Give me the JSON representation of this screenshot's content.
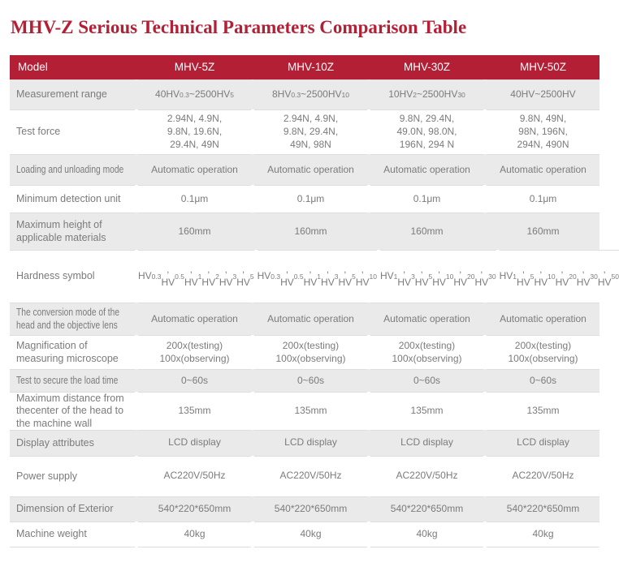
{
  "title": "MHV-Z Serious Technical Parameters Comparison Table",
  "colors": {
    "accent": "#b31f34",
    "row_alt": "#eaeaea",
    "line": "#dedede",
    "text": "#7b7b7b"
  },
  "table": {
    "header": [
      "Model",
      "MHV-5Z",
      "MHV-10Z",
      "MHV-30Z",
      "MHV-50Z"
    ],
    "rows": [
      {
        "label": "Measurement range",
        "condensed": false,
        "values": [
          "40HV_{0.3}~2500HV_{5}",
          "8HV_{0.3}~2500HV_{10}",
          "10HV_{2}~2500HV_{30}",
          "40HV~2500HV"
        ]
      },
      {
        "label": "Test force",
        "condensed": false,
        "values": [
          "2.94N, 4.9N,\n9.8N, 19.6N,\n29.4N, 49N",
          "2.94N, 4.9N,\n9.8N, 29.4N,\n49N, 98N",
          "9.8N, 29.4N,\n49.0N, 98.0N,\n196N, 294 N",
          "9.8N, 49N,\n98N, 196N,\n294N, 490N"
        ]
      },
      {
        "label": "Loading and unloading mode",
        "condensed": true,
        "values": [
          "Automatic operation",
          "Automatic operation",
          "Automatic operation",
          "Automatic operation"
        ]
      },
      {
        "label": "Minimum detection unit",
        "condensed": false,
        "values": [
          "0.1μm",
          "0.1μm",
          "0.1μm",
          "0.1μm"
        ]
      },
      {
        "label": "Maximum height of\napplicable materials",
        "condensed": false,
        "values": [
          "160mm",
          "160mm",
          "160mm",
          "160mm"
        ]
      },
      {
        "label": "Hardness symbol",
        "condensed": false,
        "values": [
          "HV_{0.3}, HV_{0.5},\nHV_{1}, HV_{2},\nHV_{3}, HV_{5}",
          "HV_{0.3}, HV_{0.5},\nHV_{1}, HV_{3},\nHV_{5}, HV_{10}",
          "HV_{1}, HV_{3},\nHV_{5}, HV_{10},\nHV_{20}, HV_{30}",
          "HV_{1}, HV_{5},\nHV_{10}, HV_{20},\nHV_{30}, HV_{50}"
        ]
      },
      {
        "label": "The conversion mode of the\nhead and the objective lens",
        "condensed": true,
        "values": [
          "Automatic operation",
          "Automatic operation",
          "Automatic operation",
          "Automatic operation"
        ]
      },
      {
        "label": "Magnification of\nmeasuring microscope",
        "condensed": false,
        "values": [
          "200x(testing)\n100x(observing)",
          "200x(testing)\n100x(observing)",
          "200x(testing)\n100x(observing)",
          "200x(testing)\n100x(observing)"
        ]
      },
      {
        "label": "Test to secure the load time",
        "condensed": true,
        "values": [
          "0~60s",
          "0~60s",
          "0~60s",
          "0~60s"
        ]
      },
      {
        "label": "Maximum distance from\nthecenter of the head to\nthe machine wall",
        "condensed": false,
        "values": [
          "135mm",
          "135mm",
          "135mm",
          "135mm"
        ]
      },
      {
        "label": "Display attributes",
        "condensed": false,
        "values": [
          "LCD display",
          "LCD display",
          "LCD display",
          "LCD display"
        ]
      },
      {
        "label": "Power supply",
        "condensed": false,
        "values": [
          "AC220V/50Hz",
          "AC220V/50Hz",
          "AC220V/50Hz",
          "AC220V/50Hz"
        ]
      },
      {
        "label": "Dimension of Exterior",
        "condensed": false,
        "values": [
          "540*220*650mm",
          "540*220*650mm",
          "540*220*650mm",
          "540*220*650mm"
        ]
      },
      {
        "label": "Machine weight",
        "condensed": false,
        "values": [
          "40kg",
          "40kg",
          "40kg",
          "40kg"
        ]
      }
    ]
  }
}
